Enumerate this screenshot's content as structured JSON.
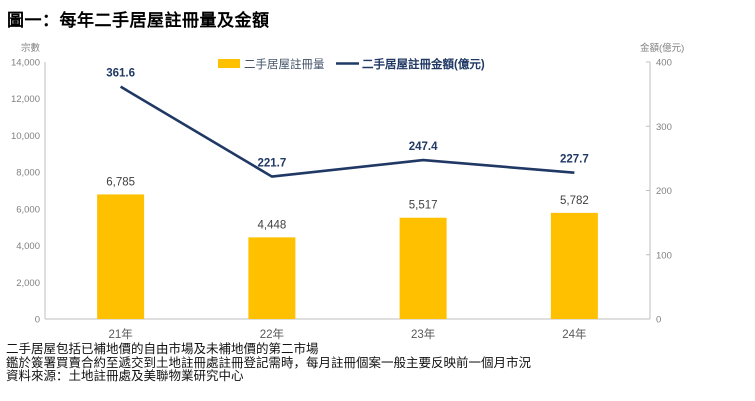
{
  "title": "圖一：每年二手居屋註冊量及金額",
  "chart_data": {
    "type": "bar",
    "subtype": "combo-bar-line",
    "categories": [
      "21年",
      "22年",
      "23年",
      "24年"
    ],
    "series": [
      {
        "name": "二手居屋註冊量",
        "type": "bar",
        "axis": "left",
        "color": "#FFC000",
        "label_color": "#404040",
        "values": [
          6785,
          4448,
          5517,
          5782
        ],
        "labels": [
          "6,785",
          "4,448",
          "5,517",
          "5,782"
        ]
      },
      {
        "name": "二手居屋註冊金額(億元)",
        "type": "line",
        "axis": "right",
        "color": "#1F3864",
        "label_color": "#1F3864",
        "values": [
          361.6,
          221.7,
          247.4,
          227.7
        ],
        "labels": [
          "361.6",
          "221.7",
          "247.4",
          "227.7"
        ]
      }
    ],
    "left_axis": {
      "title": "宗數",
      "min": 0,
      "max": 14000,
      "step": 2000,
      "tick_labels": [
        "0",
        "2,000",
        "4,000",
        "6,000",
        "8,000",
        "10,000",
        "12,000",
        "14,000"
      ]
    },
    "right_axis": {
      "title": "金額(億元)",
      "min": 0,
      "max": 400,
      "step": 100,
      "tick_labels": [
        "0",
        "100",
        "200",
        "300",
        "400"
      ]
    },
    "legend_position": "top-center",
    "grid": false,
    "axis_line_color": "#BFBFBF",
    "tick_label_color": "#808080",
    "category_label_color": "#595959",
    "legend_bar_text_color": "#44546A",
    "legend_line_text_color": "#1F3864"
  },
  "footnotes": [
    "二手居屋包括已補地價的自由市場及未補地價的第二市場",
    "鑑於簽署買賣合約至遞交到土地註冊處註冊登記需時，每月註冊個案一般主要反映前一個月市況",
    "資料來源：土地註冊處及美聯物業研究中心"
  ]
}
